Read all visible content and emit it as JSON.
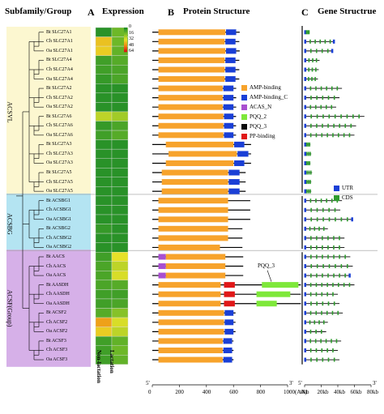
{
  "titles": {
    "subfamily": "Subfamily/Group",
    "panel_a_letter": "A",
    "panel_a": "Expression",
    "panel_b_letter": "B",
    "panel_b": "Protein Structure",
    "panel_c_letter": "C",
    "panel_c": "Gene Structrue"
  },
  "groups": [
    {
      "name": "ACSVL",
      "color": "#fcf7d0"
    },
    {
      "name": "ACSBG",
      "color": "#b4e4f2"
    },
    {
      "name": "ACSF(Group)",
      "color": "#d6b0e8"
    }
  ],
  "genes": [
    {
      "name": "Bt SLC27A1",
      "group": 0,
      "expr": [
        2,
        14
      ]
    },
    {
      "name": "Ch SLC27A1",
      "group": 0,
      "expr": [
        38,
        14
      ]
    },
    {
      "name": "Oa SLC27A1",
      "group": 0,
      "expr": [
        36,
        12
      ]
    },
    {
      "name": "Bt SLC27A4",
      "group": 0,
      "expr": [
        6,
        10
      ]
    },
    {
      "name": "Ch SLC27A4",
      "group": 0,
      "expr": [
        6,
        8
      ]
    },
    {
      "name": "Oa SLC27A4",
      "group": 0,
      "expr": [
        4,
        8
      ]
    },
    {
      "name": "Bt SLC27A2",
      "group": 0,
      "expr": [
        2,
        2
      ]
    },
    {
      "name": "Ch SLC27A2",
      "group": 0,
      "expr": [
        2,
        2
      ]
    },
    {
      "name": "Oa SLC27A2",
      "group": 0,
      "expr": [
        2,
        2
      ]
    },
    {
      "name": "Bt SLC27A6",
      "group": 0,
      "expr": [
        26,
        22
      ]
    },
    {
      "name": "Ch SLC27A6",
      "group": 0,
      "expr": [
        4,
        8
      ]
    },
    {
      "name": "Oa SLC27A6",
      "group": 0,
      "expr": [
        6,
        10
      ]
    },
    {
      "name": "Bt SLC27A3",
      "group": 0,
      "expr": [
        2,
        2
      ]
    },
    {
      "name": "Ch SLC27A3",
      "group": 0,
      "expr": [
        2,
        2
      ]
    },
    {
      "name": "Oa SLC27A3",
      "group": 0,
      "expr": [
        2,
        2
      ]
    },
    {
      "name": "Bt SLC27A5",
      "group": 0,
      "expr": [
        2,
        2
      ]
    },
    {
      "name": "Ch SLC27A5",
      "group": 0,
      "expr": [
        2,
        2
      ]
    },
    {
      "name": "Oa SLC27A5",
      "group": 0,
      "expr": [
        2,
        2
      ]
    },
    {
      "name": "Bt ACSBG1",
      "group": 1,
      "expr": [
        2,
        2
      ]
    },
    {
      "name": "Ch ACSBG1",
      "group": 1,
      "expr": [
        2,
        2
      ]
    },
    {
      "name": "Oa ACSBG1",
      "group": 1,
      "expr": [
        2,
        2
      ]
    },
    {
      "name": "Bt ACSBG2",
      "group": 1,
      "expr": [
        4,
        2
      ]
    },
    {
      "name": "Ch ACSBG2",
      "group": 1,
      "expr": [
        2,
        2
      ]
    },
    {
      "name": "Oa ACSBG2",
      "group": 1,
      "expr": [
        2,
        2
      ]
    },
    {
      "name": "Bt AACS",
      "group": 2,
      "expr": [
        6,
        32
      ]
    },
    {
      "name": "Ch AACS",
      "group": 2,
      "expr": [
        8,
        26
      ]
    },
    {
      "name": "Oa AACS",
      "group": 2,
      "expr": [
        8,
        30
      ]
    },
    {
      "name": "Bt AASDH",
      "group": 2,
      "expr": [
        8,
        10
      ]
    },
    {
      "name": "Ch AASDH",
      "group": 2,
      "expr": [
        6,
        6
      ]
    },
    {
      "name": "Oa AASDH",
      "group": 2,
      "expr": [
        6,
        8
      ]
    },
    {
      "name": "Bt ACSF2",
      "group": 2,
      "expr": [
        10,
        18
      ]
    },
    {
      "name": "Ch ACSF2",
      "group": 2,
      "expr": [
        44,
        30
      ]
    },
    {
      "name": "Oa ACSF2",
      "group": 2,
      "expr": [
        36,
        26
      ]
    },
    {
      "name": "Bt ACSF3",
      "group": 2,
      "expr": [
        6,
        12
      ]
    },
    {
      "name": "Ch ACSF3",
      "group": 2,
      "expr": [
        6,
        14
      ]
    },
    {
      "name": "Oa ACSF3",
      "group": 2,
      "expr": [
        6,
        12
      ]
    }
  ],
  "expression": {
    "columns": [
      "Non-lactation",
      "Lactation"
    ],
    "scale_ticks": [
      "0",
      "16",
      "32",
      "48",
      "64"
    ],
    "range": [
      0,
      64
    ]
  },
  "protein": {
    "axis_ticks": [
      "0",
      "200",
      "400",
      "600",
      "800",
      "1000"
    ],
    "axis_unit": "(AA)",
    "five_prime": "5'",
    "three_prime": "3'",
    "max_aa": 1000,
    "domain_types": [
      {
        "name": "AMP-binding",
        "color": "#f7a32c"
      },
      {
        "name": "AMP-binding_C",
        "color": "#1a3fd6"
      },
      {
        "name": "ACAS_N",
        "color": "#a84fd0"
      },
      {
        "name": "PQQ_2",
        "color": "#7ee83a"
      },
      {
        "name": "PQQ_3",
        "color": "#0a0a0a"
      },
      {
        "name": "PP-binding",
        "color": "#e01818"
      }
    ],
    "pqq3_callout": "PQQ_3",
    "proteins": [
      {
        "length": 646,
        "domains": [
          [
            45,
            540,
            0
          ],
          [
            545,
            620,
            1
          ]
        ]
      },
      {
        "length": 643,
        "domains": [
          [
            45,
            535,
            0
          ],
          [
            540,
            615,
            1
          ]
        ]
      },
      {
        "length": 646,
        "domains": [
          [
            45,
            540,
            0
          ],
          [
            545,
            620,
            1
          ]
        ]
      },
      {
        "length": 643,
        "domains": [
          [
            45,
            535,
            0
          ],
          [
            540,
            615,
            1
          ]
        ]
      },
      {
        "length": 643,
        "domains": [
          [
            45,
            535,
            0
          ],
          [
            540,
            615,
            1
          ]
        ]
      },
      {
        "length": 643,
        "domains": [
          [
            45,
            535,
            0
          ],
          [
            540,
            615,
            1
          ]
        ]
      },
      {
        "length": 620,
        "domains": [
          [
            45,
            520,
            0
          ],
          [
            525,
            600,
            1
          ]
        ]
      },
      {
        "length": 620,
        "domains": [
          [
            45,
            520,
            0
          ],
          [
            525,
            600,
            1
          ]
        ]
      },
      {
        "length": 620,
        "domains": [
          [
            45,
            520,
            0
          ],
          [
            525,
            600,
            1
          ]
        ]
      },
      {
        "length": 619,
        "domains": [
          [
            45,
            525,
            0
          ],
          [
            530,
            600,
            1
          ]
        ]
      },
      {
        "length": 619,
        "domains": [
          [
            45,
            525,
            0
          ],
          [
            530,
            600,
            1
          ]
        ]
      },
      {
        "length": 619,
        "domains": [
          [
            45,
            525,
            0
          ],
          [
            530,
            600,
            1
          ]
        ]
      },
      {
        "length": 730,
        "domains": [
          [
            100,
            600,
            0
          ],
          [
            605,
            680,
            1
          ]
        ]
      },
      {
        "length": 730,
        "domains": [
          [
            120,
            625,
            0
          ],
          [
            630,
            710,
            1
          ]
        ]
      },
      {
        "length": 730,
        "domains": [
          [
            100,
            600,
            0
          ],
          [
            605,
            680,
            1
          ]
        ]
      },
      {
        "length": 690,
        "domains": [
          [
            70,
            560,
            0
          ],
          [
            565,
            645,
            1
          ]
        ]
      },
      {
        "length": 690,
        "domains": [
          [
            70,
            560,
            0
          ],
          [
            565,
            645,
            1
          ]
        ]
      },
      {
        "length": 690,
        "domains": [
          [
            70,
            560,
            0
          ],
          [
            565,
            645,
            1
          ]
        ]
      },
      {
        "length": 724,
        "domains": [
          [
            45,
            560,
            0
          ]
        ]
      },
      {
        "length": 724,
        "domains": [
          [
            45,
            560,
            0
          ]
        ]
      },
      {
        "length": 724,
        "domains": [
          [
            45,
            560,
            0
          ]
        ]
      },
      {
        "length": 666,
        "domains": [
          [
            45,
            560,
            0
          ]
        ]
      },
      {
        "length": 666,
        "domains": [
          [
            45,
            560,
            0
          ]
        ]
      },
      {
        "length": 666,
        "domains": [
          [
            45,
            500,
            0
          ]
        ]
      },
      {
        "length": 672,
        "domains": [
          [
            45,
            100,
            2
          ],
          [
            100,
            540,
            0
          ]
        ]
      },
      {
        "length": 672,
        "domains": [
          [
            45,
            100,
            2
          ],
          [
            100,
            540,
            0
          ]
        ]
      },
      {
        "length": 672,
        "domains": [
          [
            45,
            100,
            2
          ],
          [
            100,
            540,
            0
          ]
        ]
      },
      {
        "length": 1098,
        "domains": [
          [
            45,
            505,
            0
          ],
          [
            530,
            610,
            5
          ],
          [
            810,
            1080,
            3
          ]
        ]
      },
      {
        "length": 1098,
        "domains": [
          [
            45,
            505,
            0
          ],
          [
            530,
            610,
            5
          ],
          [
            770,
            910,
            3
          ],
          [
            910,
            1020,
            3
          ]
        ]
      },
      {
        "length": 1098,
        "domains": [
          [
            45,
            505,
            0
          ],
          [
            530,
            610,
            5
          ],
          [
            770,
            920,
            3
          ]
        ]
      },
      {
        "length": 615,
        "domains": [
          [
            45,
            530,
            0
          ],
          [
            535,
            600,
            1
          ]
        ]
      },
      {
        "length": 615,
        "domains": [
          [
            45,
            530,
            0
          ],
          [
            535,
            600,
            1
          ]
        ]
      },
      {
        "length": 615,
        "domains": [
          [
            45,
            530,
            0
          ],
          [
            535,
            600,
            1
          ]
        ]
      },
      {
        "length": 600,
        "domains": [
          [
            45,
            520,
            0
          ],
          [
            525,
            590,
            1
          ]
        ]
      },
      {
        "length": 600,
        "domains": [
          [
            45,
            520,
            0
          ],
          [
            525,
            590,
            1
          ]
        ]
      },
      {
        "length": 600,
        "domains": [
          [
            45,
            520,
            0
          ],
          [
            525,
            590,
            1
          ]
        ]
      }
    ]
  },
  "gene": {
    "axis_ticks": [
      "0kb",
      "20kb",
      "40kb",
      "60kb",
      "80kb"
    ],
    "five_prime": "5'",
    "three_prime": "3'",
    "max_kb": 80,
    "legend": [
      {
        "name": "UTR",
        "color": "#1a3fd6"
      },
      {
        "name": "CDS",
        "color": "#2e9b2e"
      }
    ],
    "genes": [
      {
        "length": 6
      },
      {
        "length": 36,
        "utr3": true
      },
      {
        "length": 34,
        "utr3": true
      },
      {
        "length": 18
      },
      {
        "length": 17
      },
      {
        "length": 16
      },
      {
        "length": 45
      },
      {
        "length": 42
      },
      {
        "length": 38
      },
      {
        "length": 72
      },
      {
        "length": 62
      },
      {
        "length": 60
      },
      {
        "length": 7
      },
      {
        "length": 8
      },
      {
        "length": 7
      },
      {
        "length": 9
      },
      {
        "length": 8
      },
      {
        "length": 8
      },
      {
        "length": 45
      },
      {
        "length": 43
      },
      {
        "length": 58,
        "utr3": true
      },
      {
        "length": 28
      },
      {
        "length": 48
      },
      {
        "length": 48
      },
      {
        "length": 55
      },
      {
        "length": 58
      },
      {
        "length": 55,
        "utr3": true
      },
      {
        "length": 60
      },
      {
        "length": 40
      },
      {
        "length": 42
      },
      {
        "length": 46
      },
      {
        "length": 28
      },
      {
        "length": 26
      },
      {
        "length": 44
      },
      {
        "length": 40
      },
      {
        "length": 42
      }
    ]
  }
}
